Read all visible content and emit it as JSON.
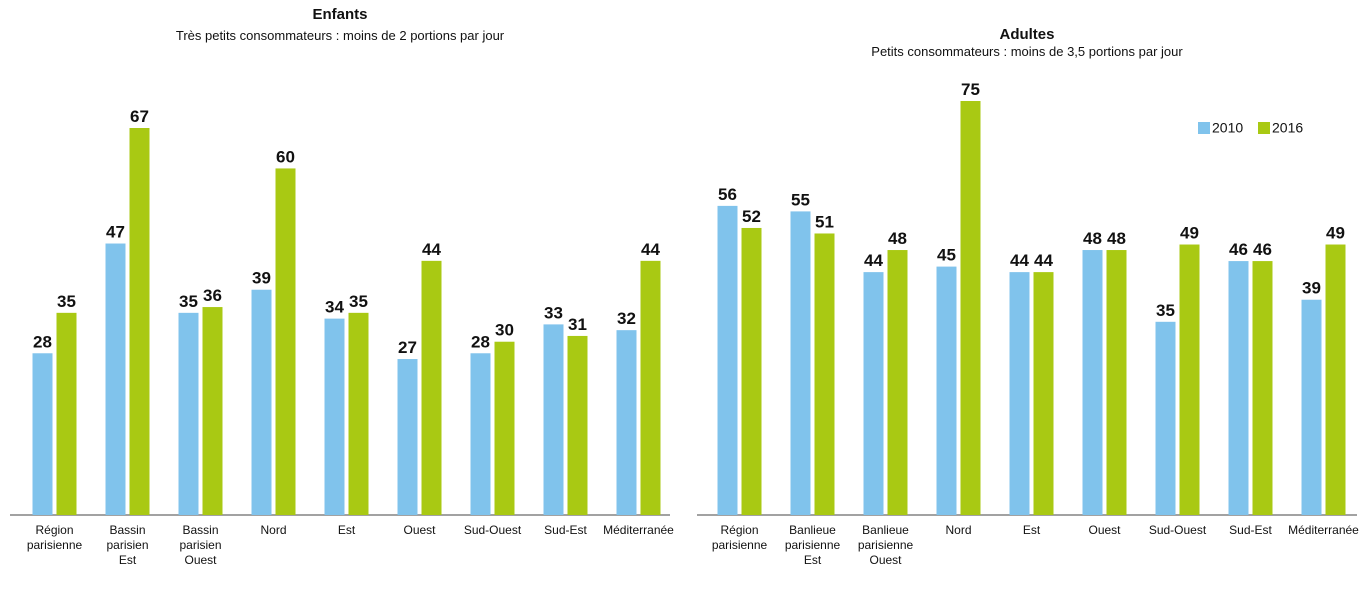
{
  "chart_data": [
    {
      "type": "bar",
      "title": "Enfants",
      "subtitle": "Très petits consommateurs : moins de 2 portions par jour",
      "categories": [
        "Région\nparisienne",
        "Bassin\nparisien\nEst",
        "Bassin\nparisien\nOuest",
        "Nord",
        "Est",
        "Ouest",
        "Sud-Ouest",
        "Sud-Est",
        "Méditerranée"
      ],
      "series": [
        {
          "name": "2010",
          "color": "#80c3ec",
          "values": [
            28,
            47,
            35,
            39,
            34,
            27,
            28,
            33,
            32
          ]
        },
        {
          "name": "2016",
          "color": "#a9c913",
          "values": [
            35,
            67,
            36,
            60,
            35,
            44,
            30,
            31,
            44
          ]
        }
      ],
      "legend": false
    },
    {
      "type": "bar",
      "title": "Adultes",
      "subtitle": "Petits consommateurs : moins de 3,5 portions par jour",
      "categories": [
        "Région\nparisienne",
        "Banlieue\nparisienne\nEst",
        "Banlieue\nparisienne\nOuest",
        "Nord",
        "Est",
        "Ouest",
        "Sud-Ouest",
        "Sud-Est",
        "Méditerranée"
      ],
      "series": [
        {
          "name": "2010",
          "color": "#80c3ec",
          "values": [
            56,
            55,
            44,
            45,
            44,
            48,
            35,
            46,
            39
          ]
        },
        {
          "name": "2016",
          "color": "#a9c913",
          "values": [
            52,
            51,
            48,
            75,
            44,
            48,
            49,
            46,
            49
          ]
        }
      ],
      "legend": true
    }
  ]
}
